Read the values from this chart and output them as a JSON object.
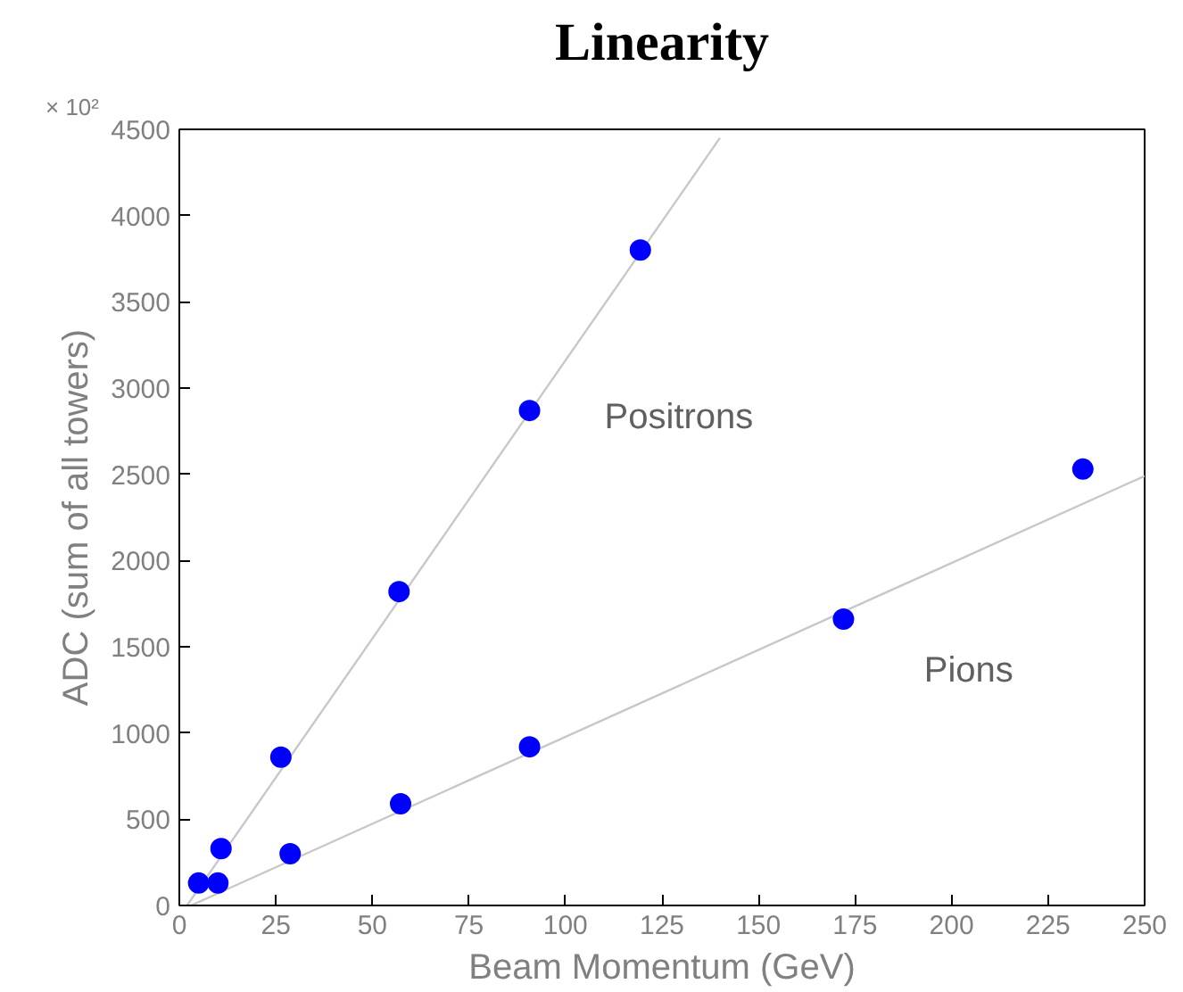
{
  "chart_data": {
    "type": "scatter",
    "title": "Linearity",
    "xlabel": "Beam Momentum (GeV)",
    "ylabel": "ADC (sum of all towers)",
    "xlim": [
      0,
      250
    ],
    "ylim": [
      0,
      4500
    ],
    "xticks": [
      0,
      25,
      50,
      75,
      100,
      125,
      150,
      175,
      200,
      225,
      250
    ],
    "yticks": [
      0,
      500,
      1000,
      1500,
      2000,
      2500,
      3000,
      3500,
      4000,
      4500
    ],
    "grid": false,
    "marker": "circle",
    "series": [
      {
        "type": "line",
        "name": "Positrons",
        "marker": "none",
        "color": "#c8c8c8",
        "x": [
          2,
          140
        ],
        "values": [
          0,
          4450
        ]
      },
      {
        "type": "line",
        "name": "Pions",
        "marker": "none",
        "color": "#c8c8c8",
        "x": [
          3,
          250
        ],
        "values": [
          0,
          2490
        ]
      },
      {
        "color": "#0000ff",
        "x": [
          5,
          10.8,
          26.3,
          56.9,
          90.7,
          119.4
        ],
        "values": [
          130,
          330,
          860,
          1820,
          2870,
          3800
        ]
      },
      {
        "color": "#0000ff",
        "x": [
          10,
          28.7,
          57.3,
          90.7,
          172,
          234
        ],
        "values": [
          130,
          300,
          590,
          920,
          1660,
          2530
        ]
      }
    ],
    "annotations": [
      "× 10²"
    ]
  }
}
